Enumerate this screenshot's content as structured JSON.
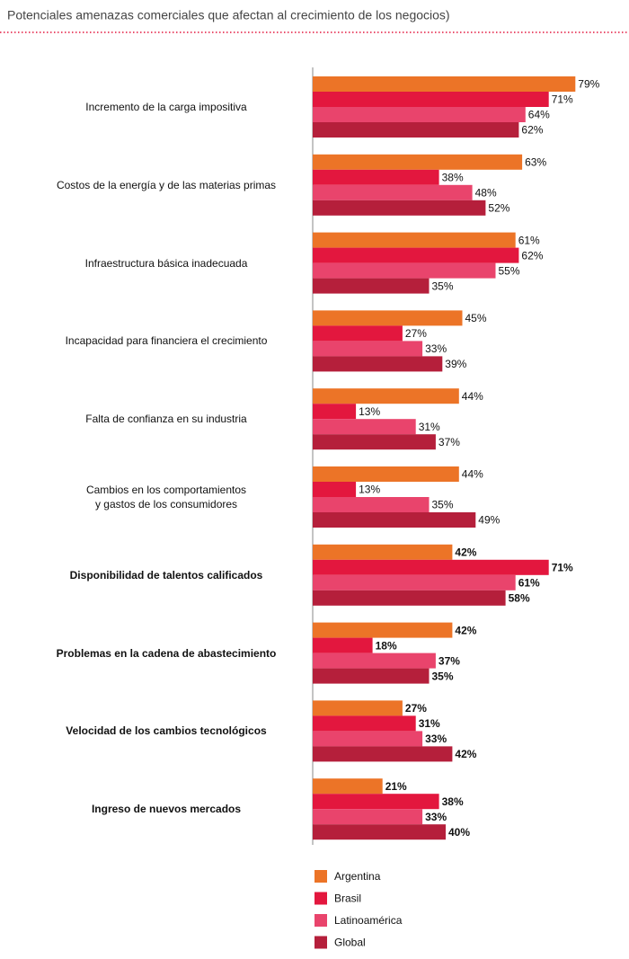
{
  "chart_data": {
    "type": "bar",
    "orientation": "horizontal",
    "title": "Potenciales amenazas comerciales que afectan al crecimiento de los negocios)",
    "categories": [
      "Incremento de la carga impositiva",
      "Costos de la energía y de las materias primas",
      "Infraestructura básica inadecuada",
      "Incapacidad para financiera el crecimiento",
      "Falta de confianza en su industria",
      "Cambios en los comportamientos\ny gastos de los consumidores",
      "Disponibilidad de talentos calificados",
      "Problemas en la cadena de abastecimiento",
      "Velocidad de los cambios tecnológicos",
      "Ingreso de nuevos mercados"
    ],
    "series": [
      {
        "name": "Argentina",
        "color": "#ec7427",
        "values": [
          79,
          63,
          61,
          45,
          44,
          44,
          42,
          42,
          27,
          21
        ],
        "value_labels": [
          "79%",
          "63%",
          "61%",
          "45%",
          "44%",
          "44%",
          "42%",
          "42%",
          "27%",
          "21%"
        ]
      },
      {
        "name": "Brasil",
        "color": "#e3173e",
        "values": [
          71,
          38,
          62,
          27,
          13,
          13,
          71,
          18,
          31,
          38
        ],
        "value_labels": [
          "71%",
          "38%",
          "62%",
          "27%",
          "13%",
          "13%",
          "71%",
          "18%",
          "31%",
          "38%"
        ]
      },
      {
        "name": "Latinoamérica",
        "color": "#e9446c",
        "values": [
          64,
          48,
          55,
          33,
          31,
          35,
          61,
          37,
          33,
          33
        ],
        "value_labels": [
          "64%",
          "48%",
          "55%",
          "33%",
          "31%",
          "35%",
          "61%",
          "37%",
          "33%",
          "33%"
        ]
      },
      {
        "name": "Global",
        "color": "#b51f3b",
        "values": [
          62,
          52,
          35,
          39,
          37,
          49,
          58,
          35,
          42,
          40
        ],
        "value_labels": [
          "62%",
          "52%",
          "35%",
          "39%",
          "37%",
          "49%",
          "58%",
          "35%",
          "42%",
          "40%"
        ]
      }
    ],
    "legend": "bottom"
  }
}
